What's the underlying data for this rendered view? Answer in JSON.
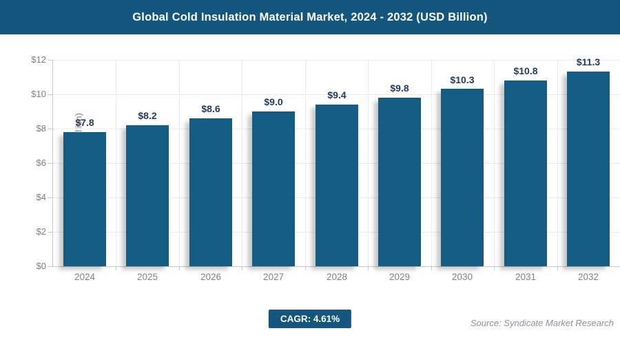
{
  "header": {
    "title": "Global Cold Insulation Material Market, 2024 - 2032 (USD Billion)"
  },
  "chart_data": {
    "type": "bar",
    "title": "Global Cold Insulation Material Market, 2024 - 2032 (USD Billion)",
    "categories": [
      "2024",
      "2025",
      "2026",
      "2027",
      "2028",
      "2029",
      "2030",
      "2031",
      "2032"
    ],
    "values": [
      7.8,
      8.2,
      8.6,
      9.0,
      9.4,
      9.8,
      10.3,
      10.8,
      11.3
    ],
    "value_labels": [
      "$7.8",
      "$8.2",
      "$8.6",
      "$9.0",
      "$9.4",
      "$9.8",
      "$10.3",
      "$10.8",
      "$11.3"
    ],
    "xlabel": "",
    "ylabel": "Market Size (USD Billion)",
    "ylim": [
      0,
      12
    ],
    "ytick_step": 2,
    "ytick_labels": [
      "$0",
      "$2",
      "$4",
      "$6",
      "$8",
      "$10",
      "$12"
    ],
    "grid": true,
    "legend": false,
    "bar_color": "#145C84",
    "value_label_color": "#1E3A5F"
  },
  "footer": {
    "cagr_label": "CAGR: 4.61%",
    "source": "Source: Syndicate Market Research"
  },
  "colors": {
    "banner": "#15567E",
    "bar": "#145C84",
    "axis_text": "#7E7E7E",
    "gridline": "#E9E9E9"
  }
}
